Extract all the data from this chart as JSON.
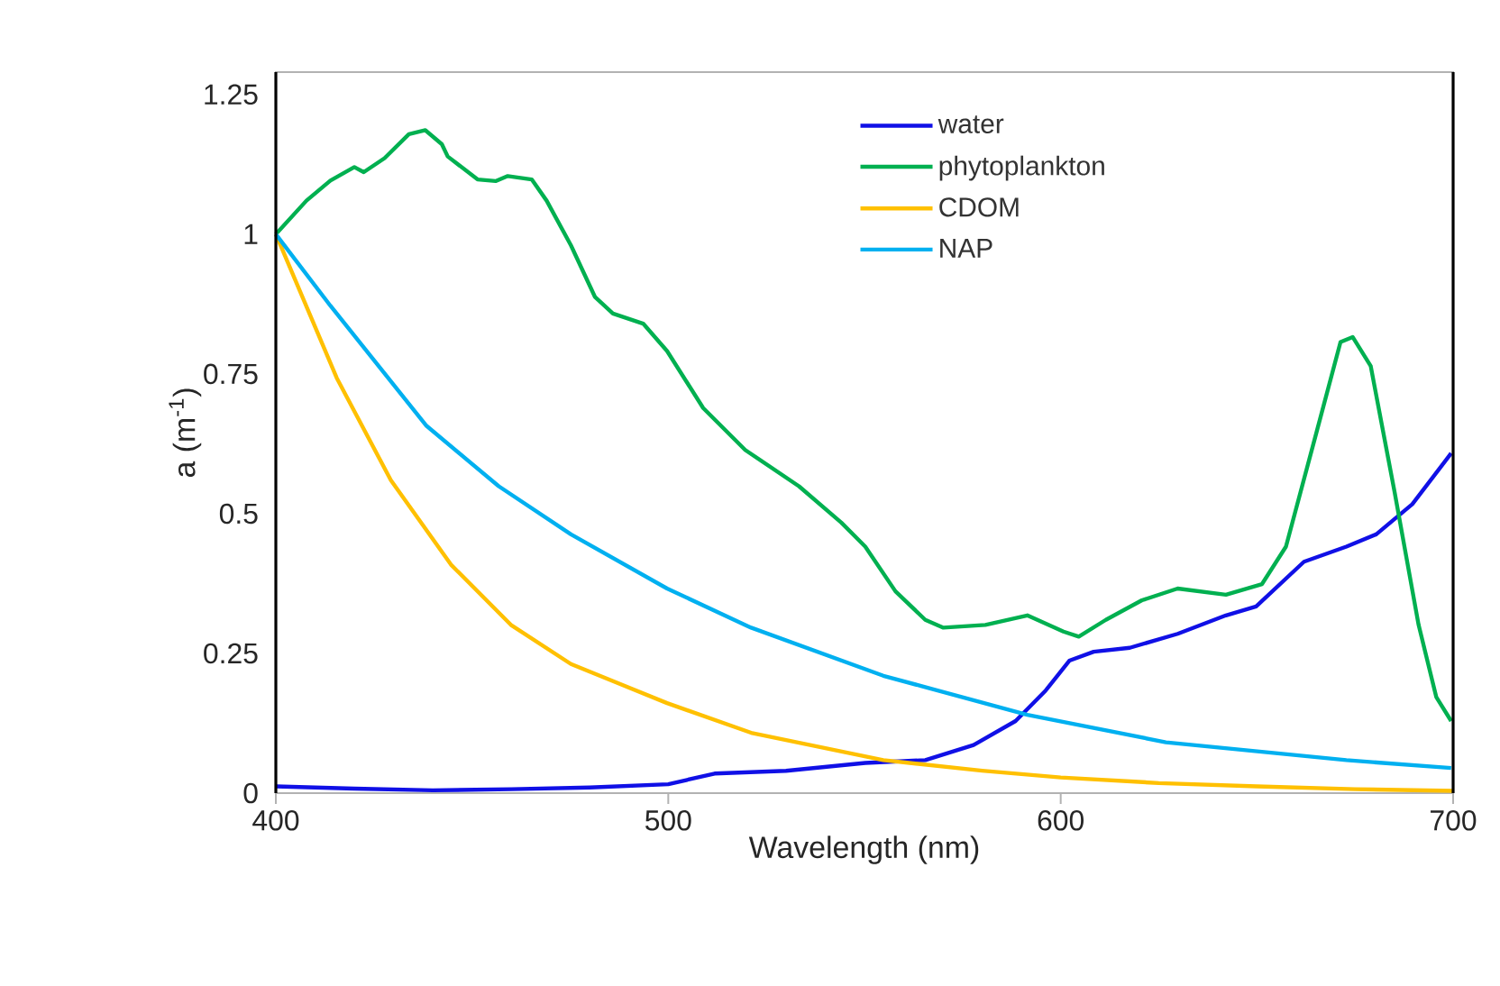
{
  "chart_data": {
    "type": "line",
    "xlabel": "Wavelength (nm)",
    "ylabel": "a (m$^{-1}$)",
    "xlim": [
      400,
      700
    ],
    "xticks": [
      400,
      500,
      600,
      700
    ],
    "ylim": [
      0,
      1.29
    ],
    "yticks": [
      0,
      0.25,
      0.5,
      0.75,
      1,
      1.25
    ],
    "legend": "top right",
    "marker": "none",
    "line_style": "solid",
    "series": [
      {
        "name": "water",
        "color": "#1010e6",
        "x": [
          400,
          420,
          440,
          460,
          480,
          500,
          511.8,
          530,
          550.2,
          565.5,
          577.8,
          588.5,
          596.1,
          602.2,
          608.4,
          617.6,
          629.8,
          642.1,
          649.8,
          662,
          672.8,
          680.4,
          689.6,
          699.5
        ],
        "values": [
          0.012,
          0.008,
          0.005,
          0.007,
          0.01,
          0.016,
          0.035,
          0.04,
          0.054,
          0.059,
          0.086,
          0.129,
          0.183,
          0.237,
          0.253,
          0.26,
          0.285,
          0.318,
          0.334,
          0.414,
          0.441,
          0.463,
          0.517,
          0.608
        ]
      },
      {
        "name": "phytoplankton",
        "color": "#00b050",
        "x": [
          400,
          407.8,
          413.9,
          420,
          422.4,
          427.7,
          433.9,
          438.1,
          442.3,
          443.8,
          451.4,
          456,
          459.1,
          465.2,
          469,
          475.2,
          481.3,
          485.9,
          493.6,
          499.7,
          508.9,
          519.6,
          533.3,
          544.1,
          550.2,
          557.9,
          565.5,
          570.1,
          580.8,
          591.5,
          600.7,
          604.6,
          611.5,
          620.7,
          629.8,
          642.1,
          651.3,
          657.4,
          665.2,
          671.3,
          674.4,
          679,
          685.1,
          691.2,
          695.7,
          699.5
        ],
        "values": [
          1.0,
          1.06,
          1.096,
          1.12,
          1.111,
          1.136,
          1.179,
          1.186,
          1.161,
          1.139,
          1.098,
          1.095,
          1.104,
          1.098,
          1.06,
          0.98,
          0.888,
          0.858,
          0.84,
          0.791,
          0.689,
          0.614,
          0.549,
          0.484,
          0.441,
          0.361,
          0.31,
          0.296,
          0.301,
          0.318,
          0.289,
          0.28,
          0.31,
          0.345,
          0.366,
          0.355,
          0.374,
          0.441,
          0.646,
          0.807,
          0.816,
          0.764,
          0.538,
          0.301,
          0.172,
          0.129
        ]
      },
      {
        "name": "CDOM",
        "color": "#ffc000",
        "x": [
          400,
          415.5,
          429.3,
          444.6,
          459.9,
          475.2,
          499.7,
          521.1,
          554.8,
          580,
          600,
          625,
          650,
          675,
          700
        ],
        "values": [
          1.0,
          0.743,
          0.56,
          0.409,
          0.301,
          0.231,
          0.161,
          0.108,
          0.059,
          0.04,
          0.028,
          0.018,
          0.012,
          0.007,
          0.004
        ]
      },
      {
        "name": "NAP",
        "color": "#00b0f0",
        "x": [
          400,
          413.9,
          438.4,
          456.8,
          475.2,
          499.7,
          521.1,
          554.8,
          591.5,
          626.8,
          672.8,
          699.5
        ],
        "values": [
          1.0,
          0.872,
          0.657,
          0.549,
          0.463,
          0.366,
          0.296,
          0.21,
          0.14,
          0.091,
          0.059,
          0.045
        ]
      }
    ]
  }
}
